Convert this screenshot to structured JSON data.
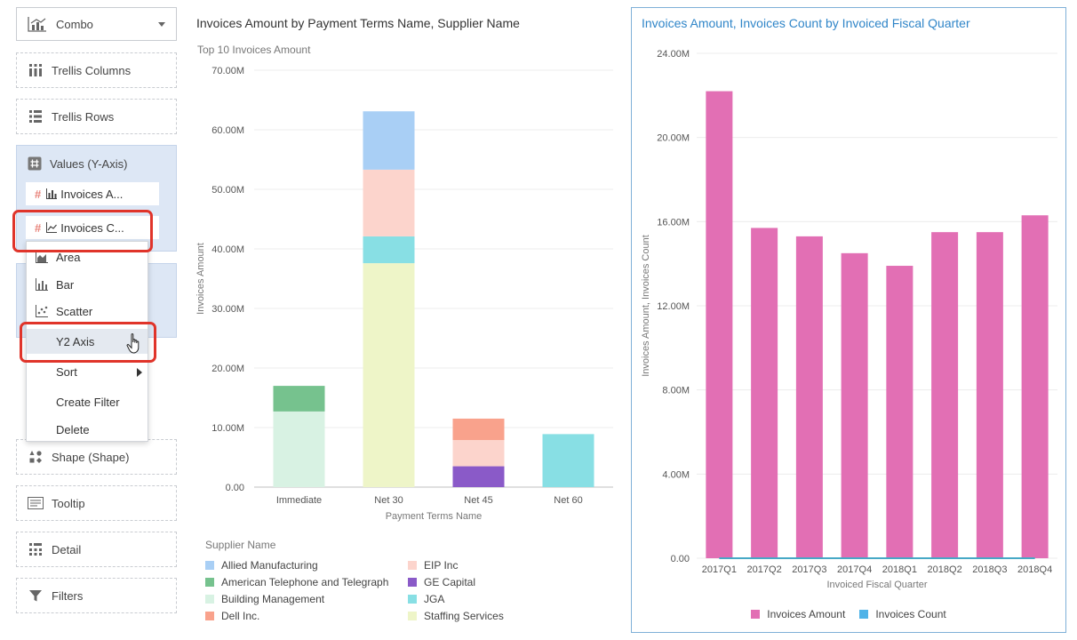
{
  "grammar": {
    "chart_type": "Combo",
    "trellis_columns": "Trellis Columns",
    "trellis_rows": "Trellis Rows",
    "values_header": "Values (Y-Axis)",
    "value_item_1": "Invoices A...",
    "value_item_2": "Invoices C...",
    "shape": "Shape (Shape)",
    "tooltip": "Tooltip",
    "detail": "Detail",
    "filters": "Filters"
  },
  "context_menu": {
    "items": [
      "Area",
      "Bar",
      "Scatter",
      "Y2 Axis",
      "Sort",
      "Create Filter",
      "Delete"
    ]
  },
  "chart1": {
    "title": "Invoices Amount by Payment Terms Name, Supplier Name",
    "legend_title": "Supplier Name"
  },
  "chart2": {
    "title": "Invoices Amount, Invoices Count by Invoiced Fiscal Quarter"
  },
  "colors": {
    "allied": "#a9cff5",
    "att": "#76c28e",
    "building": "#d8f2e3",
    "dell": "#f9a28c",
    "eip": "#fcd4cc",
    "ge": "#8a5ac8",
    "jga": "#88dfe4",
    "staffing": "#eef5c8",
    "pink": "#e26fb4",
    "teal": "#47a9c6",
    "blue_legend": "#4fb3e8"
  },
  "chart_data": [
    {
      "type": "bar",
      "stacked": true,
      "subtitle": "Top 10 Invoices Amount",
      "xlabel": "Payment Terms Name",
      "ylabel": "Invoices Amount",
      "categories": [
        "Immediate",
        "Net 30",
        "Net 45",
        "Net 60"
      ],
      "ylim": [
        0,
        70
      ],
      "yticks": [
        "0.00",
        "10.00M",
        "20.00M",
        "30.00M",
        "40.00M",
        "50.00M",
        "60.00M",
        "70.00M"
      ],
      "series": [
        {
          "name": "Allied Manufacturing",
          "values": [
            0,
            9.8,
            0,
            0
          ]
        },
        {
          "name": "American Telephone and Telegraph",
          "values": [
            4.3,
            0,
            0,
            0
          ]
        },
        {
          "name": "Building Management",
          "values": [
            12.7,
            0,
            0,
            0
          ]
        },
        {
          "name": "Dell Inc.",
          "values": [
            0,
            0,
            3.6,
            0
          ]
        },
        {
          "name": "EIP Inc",
          "values": [
            0,
            11.2,
            4.4,
            0
          ]
        },
        {
          "name": "GE Capital",
          "values": [
            0,
            0,
            3.5,
            0
          ]
        },
        {
          "name": "JGA",
          "values": [
            0,
            4.5,
            0,
            8.9
          ]
        },
        {
          "name": "Staffing Services",
          "values": [
            0,
            37.6,
            0,
            0
          ]
        }
      ],
      "grid": true,
      "legend": "bottom"
    },
    {
      "type": "bar",
      "xlabel": "Invoiced Fiscal Quarter",
      "ylabel": "Invoices Amount, Invoices Count",
      "categories": [
        "2017Q1",
        "2017Q2",
        "2017Q3",
        "2017Q4",
        "2018Q1",
        "2018Q2",
        "2018Q3",
        "2018Q4"
      ],
      "ylim": [
        0,
        24
      ],
      "yticks": [
        "0.00",
        "4.00M",
        "8.00M",
        "12.00M",
        "16.00M",
        "20.00M",
        "24.00M"
      ],
      "series": [
        {
          "name": "Invoices Amount",
          "values": [
            22.2,
            15.7,
            15.3,
            14.5,
            13.9,
            15.5,
            15.5,
            16.3
          ]
        },
        {
          "name": "Invoices Count",
          "values": [
            0,
            0,
            0,
            0,
            0,
            0,
            0,
            0
          ]
        }
      ],
      "grid": true,
      "legend": "bottom"
    }
  ]
}
